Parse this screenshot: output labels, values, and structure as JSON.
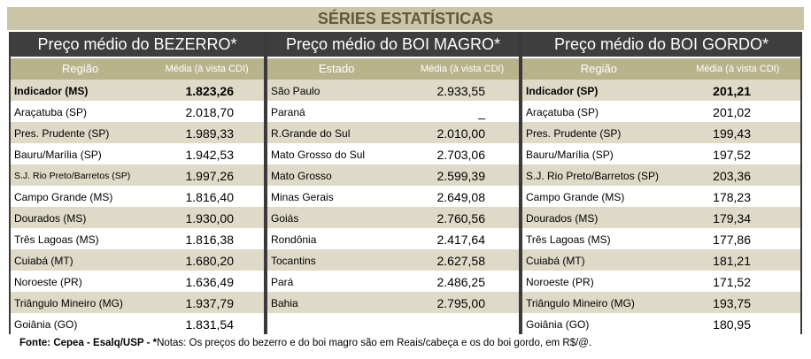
{
  "title": "SÉRIES ESTATÍSTICAS",
  "panels": [
    {
      "title": "Preço médio do BEZERRO*",
      "columns": [
        "Região",
        "Média (à vista CDI)"
      ],
      "rows": [
        [
          "Indicador (MS)",
          "1.823,26"
        ],
        [
          "Araçatuba (SP)",
          "2.018,70"
        ],
        [
          "Pres. Prudente (SP)",
          "1.989,33"
        ],
        [
          "Bauru/Marília (SP)",
          "1.942,53"
        ],
        [
          "S.J. Rio Preto/Barretos (SP)",
          "1.997,26"
        ],
        [
          "Campo Grande (MS)",
          "1.816,40"
        ],
        [
          "Dourados (MS)",
          "1.930,00"
        ],
        [
          "Três Lagoas (MS)",
          "1.816,38"
        ],
        [
          "Cuiabá (MT)",
          "1.680,20"
        ],
        [
          "Noroeste (PR)",
          "1.636,49"
        ],
        [
          "Triângulo Mineiro (MG)",
          "1.937,79"
        ],
        [
          "Goiânia (GO)",
          "1.831,54"
        ]
      ]
    },
    {
      "title": "Preço médio do BOI MAGRO*",
      "columns": [
        "Estado",
        "Média (à vista CDI)"
      ],
      "rows": [
        [
          "São Paulo",
          "2.933,55"
        ],
        [
          "Paraná",
          "_"
        ],
        [
          "R.Grande do Sul",
          "2.010,00"
        ],
        [
          "Mato Grosso do Sul",
          "2.703,06"
        ],
        [
          "Mato Grosso",
          "2.599,39"
        ],
        [
          "Minas Gerais",
          "2.649,08"
        ],
        [
          "Goiás",
          "2.760,56"
        ],
        [
          "Rondônia",
          "2.417,64"
        ],
        [
          "Tocantins",
          "2.627,58"
        ],
        [
          "Pará",
          "2.486,25"
        ],
        [
          "Bahia",
          "2.795,00"
        ]
      ]
    },
    {
      "title": "Preço médio do BOI GORDO*",
      "columns": [
        "Região",
        "Média (à vista CDI)"
      ],
      "rows": [
        [
          "Indicador (SP)",
          "201,21"
        ],
        [
          "Araçatuba (SP)",
          "201,02"
        ],
        [
          "Pres. Prudente (SP)",
          "199,43"
        ],
        [
          "Bauru/Marília (SP)",
          "197,52"
        ],
        [
          "S.J. Rio Preto/Barretos (SP)",
          "203,36"
        ],
        [
          "Campo Grande (MS)",
          "178,23"
        ],
        [
          "Dourados (MS)",
          "179,34"
        ],
        [
          "Três Lagoas (MS)",
          "177,86"
        ],
        [
          "Cuiabá (MT)",
          "181,21"
        ],
        [
          "Noroeste (PR)",
          "171,52"
        ],
        [
          "Triângulo Mineiro (MG)",
          "193,75"
        ],
        [
          "Goiânia (GO)",
          "180,95"
        ]
      ]
    }
  ],
  "footer": {
    "source": "Fonte: Cepea - Esalq/USP - *",
    "note": "Notas: Os preços do bezerro e do boi magro são em Reais/cabeça e os do boi gordo, em R$/@."
  }
}
